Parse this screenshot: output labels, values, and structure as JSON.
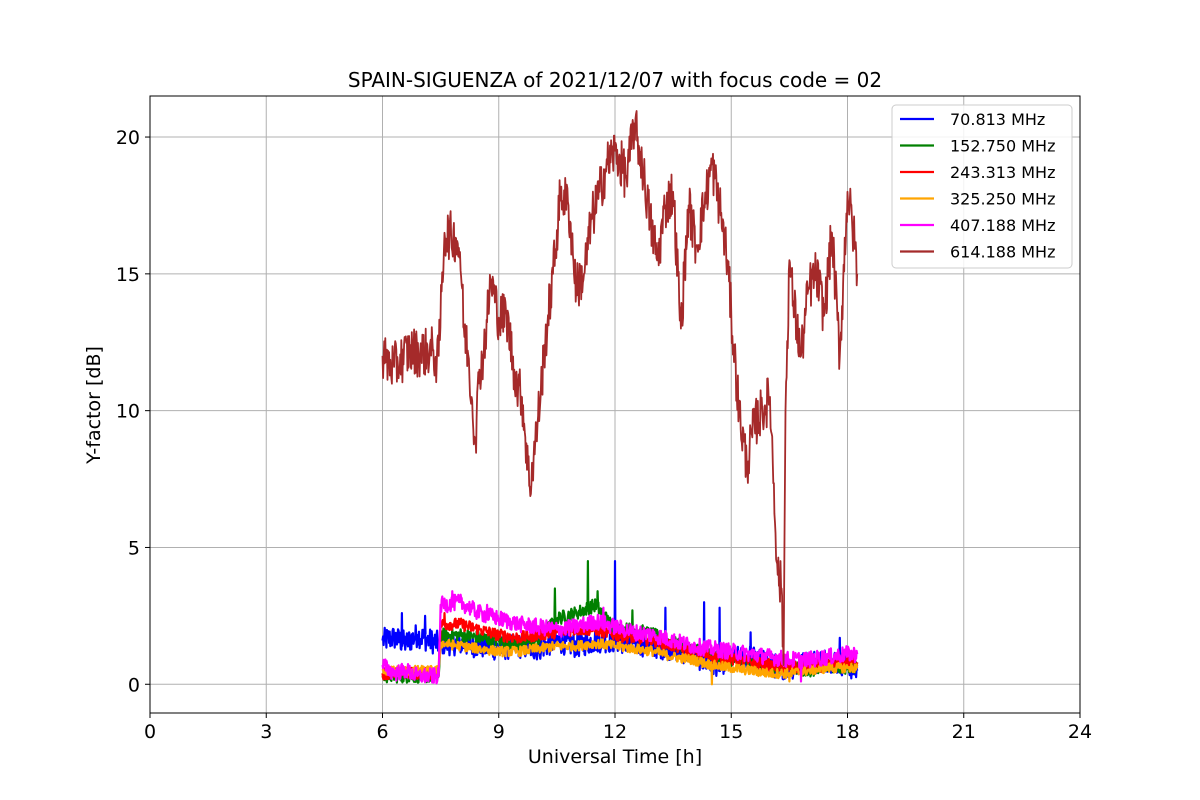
{
  "chart_data": {
    "type": "line",
    "title": "SPAIN-SIGUENZA of 2021/12/07 with focus code = 02",
    "xlabel": "Universal Time [h]",
    "ylabel": "Y-factor [dB]",
    "xlim": [
      0,
      24
    ],
    "ylim": [
      -1.05,
      21.5
    ],
    "xticks": [
      0,
      3,
      6,
      9,
      12,
      15,
      18,
      21,
      24
    ],
    "yticks": [
      0,
      5,
      10,
      15,
      20
    ],
    "grid": true,
    "legend_position": "top-right",
    "series": [
      {
        "name": "70.813 MHz",
        "color": "#0000ff",
        "x": [
          6.0,
          6.3,
          6.6,
          6.9,
          7.2,
          7.45,
          7.5,
          8.0,
          8.5,
          9.0,
          9.5,
          10.0,
          10.5,
          11.0,
          11.5,
          12.0,
          12.5,
          13.0,
          13.5,
          14.0,
          14.5,
          15.0,
          15.5,
          16.0,
          16.5,
          17.0,
          17.5,
          18.0,
          18.25
        ],
        "y": [
          1.6,
          1.7,
          1.5,
          1.8,
          1.6,
          1.5,
          1.5,
          1.5,
          1.4,
          1.3,
          1.4,
          1.3,
          1.6,
          1.4,
          1.6,
          1.6,
          1.5,
          1.4,
          1.3,
          1.1,
          0.7,
          0.9,
          1.0,
          0.7,
          0.6,
          0.8,
          0.9,
          0.7,
          0.5
        ],
        "spikes": [
          [
            6.5,
            2.6
          ],
          [
            7.1,
            2.5
          ],
          [
            12.0,
            4.5
          ],
          [
            13.3,
            2.8
          ],
          [
            14.3,
            3.0
          ],
          [
            14.7,
            2.8
          ],
          [
            15.5,
            1.9
          ],
          [
            17.8,
            1.7
          ]
        ]
      },
      {
        "name": "152.750 MHz",
        "color": "#008000",
        "x": [
          6.0,
          6.5,
          7.0,
          7.45,
          7.5,
          8.0,
          8.5,
          9.0,
          9.5,
          10.0,
          10.5,
          11.0,
          11.5,
          12.0,
          12.5,
          13.0,
          13.5,
          14.0,
          14.5,
          15.0,
          15.5,
          16.0,
          16.5,
          17.0,
          17.5,
          18.0,
          18.25
        ],
        "y": [
          0.3,
          0.3,
          0.3,
          0.3,
          1.8,
          1.8,
          1.7,
          1.6,
          1.5,
          1.6,
          2.4,
          2.6,
          2.9,
          2.0,
          2.0,
          1.8,
          1.5,
          1.3,
          1.1,
          0.9,
          0.8,
          0.6,
          0.7,
          0.5,
          0.7,
          0.6,
          0.7
        ],
        "spikes": [
          [
            10.45,
            3.5
          ],
          [
            11.3,
            4.5
          ],
          [
            11.55,
            3.4
          ],
          [
            12.45,
            2.7
          ]
        ]
      },
      {
        "name": "243.313 MHz",
        "color": "#ff0000",
        "x": [
          6.0,
          6.5,
          7.0,
          7.45,
          7.5,
          8.0,
          8.5,
          9.0,
          9.5,
          10.0,
          10.5,
          11.0,
          11.5,
          12.0,
          12.5,
          13.0,
          13.5,
          14.0,
          14.5,
          15.0,
          15.5,
          16.0,
          16.5,
          17.0,
          17.5,
          18.0,
          18.25
        ],
        "y": [
          0.4,
          0.4,
          0.4,
          0.4,
          2.2,
          2.2,
          2.0,
          1.8,
          1.7,
          1.8,
          1.9,
          2.0,
          2.0,
          1.8,
          1.7,
          1.6,
          1.4,
          1.2,
          1.0,
          0.9,
          0.8,
          0.7,
          0.6,
          0.6,
          0.7,
          0.8,
          0.8
        ],
        "spikes": [
          [
            7.6,
            2.6
          ],
          [
            11.4,
            2.4
          ]
        ]
      },
      {
        "name": "325.250 MHz",
        "color": "#ffa500",
        "x": [
          6.0,
          6.5,
          7.0,
          7.45,
          7.5,
          8.0,
          8.5,
          9.0,
          9.5,
          10.0,
          10.5,
          11.0,
          11.5,
          12.0,
          12.5,
          13.0,
          13.5,
          14.0,
          14.5,
          15.0,
          15.5,
          16.0,
          16.5,
          17.0,
          17.5,
          18.0,
          18.25
        ],
        "y": [
          0.5,
          0.5,
          0.5,
          0.5,
          1.5,
          1.4,
          1.3,
          1.2,
          1.2,
          1.3,
          1.4,
          1.4,
          1.5,
          1.4,
          1.3,
          1.2,
          1.0,
          0.9,
          0.7,
          0.6,
          0.5,
          0.4,
          0.4,
          0.5,
          0.6,
          0.6,
          0.6
        ],
        "spikes": [
          [
            14.5,
            0.0
          ],
          [
            16.5,
            0.1
          ]
        ]
      },
      {
        "name": "407.188 MHz",
        "color": "#ff00ff",
        "x": [
          6.0,
          6.3,
          6.6,
          6.9,
          7.2,
          7.45,
          7.5,
          8.0,
          8.5,
          9.0,
          9.5,
          10.0,
          10.5,
          11.0,
          11.5,
          12.0,
          12.5,
          13.0,
          13.5,
          14.0,
          14.5,
          15.0,
          15.5,
          16.0,
          16.5,
          17.0,
          17.5,
          18.0,
          18.25
        ],
        "y": [
          0.7,
          0.4,
          0.5,
          0.3,
          0.3,
          0.3,
          2.9,
          3.0,
          2.6,
          2.4,
          2.2,
          2.1,
          2.0,
          2.1,
          2.3,
          2.1,
          1.9,
          1.8,
          1.6,
          1.4,
          1.3,
          1.2,
          1.1,
          1.0,
          0.9,
          0.9,
          1.0,
          1.1,
          1.1
        ],
        "spikes": [
          [
            7.8,
            3.4
          ],
          [
            8.7,
            2.9
          ],
          [
            11.7,
            2.8
          ],
          [
            16.8,
            0.1
          ]
        ]
      },
      {
        "name": "614.188 MHz",
        "color": "#a52a2a",
        "x": [
          6.0,
          6.1,
          6.3,
          6.5,
          6.7,
          7.0,
          7.3,
          7.4,
          7.45,
          7.6,
          7.9,
          8.0,
          8.1,
          8.2,
          8.3,
          8.4,
          8.5,
          8.6,
          8.8,
          9.0,
          9.2,
          9.4,
          9.5,
          9.6,
          9.8,
          10.0,
          10.2,
          10.4,
          10.6,
          10.8,
          11.0,
          11.2,
          11.4,
          11.6,
          11.8,
          12.0,
          12.1,
          12.3,
          12.5,
          12.7,
          12.9,
          13.1,
          13.3,
          13.5,
          13.7,
          13.9,
          14.1,
          14.3,
          14.5,
          14.7,
          14.9,
          15.0,
          15.2,
          15.4,
          15.6,
          15.8,
          16.0,
          16.2,
          16.3,
          16.35,
          16.4,
          16.5,
          16.6,
          16.8,
          17.0,
          17.2,
          17.4,
          17.6,
          17.8,
          18.0,
          18.2,
          18.25
        ],
        "y": [
          12.0,
          11.8,
          11.6,
          11.9,
          12.2,
          12.1,
          12.2,
          11.8,
          12.0,
          16.5,
          16.3,
          15.8,
          13.0,
          12.2,
          10.5,
          9.0,
          11.5,
          12.0,
          14.8,
          13.4,
          13.5,
          11.5,
          10.8,
          10.5,
          7.2,
          9.5,
          12.5,
          15.0,
          18.0,
          17.5,
          14.5,
          15.0,
          17.0,
          18.0,
          19.0,
          19.5,
          19.2,
          18.5,
          20.5,
          19.0,
          17.0,
          15.5,
          17.5,
          18.0,
          13.0,
          17.5,
          16.0,
          17.5,
          19.0,
          17.5,
          15.5,
          13.5,
          10.0,
          8.0,
          9.5,
          10.0,
          10.5,
          4.0,
          3.5,
          0.7,
          10.0,
          15.5,
          14.0,
          12.0,
          14.5,
          15.0,
          13.5,
          16.5,
          12.0,
          18.0,
          16.0,
          15.0
        ]
      }
    ]
  }
}
